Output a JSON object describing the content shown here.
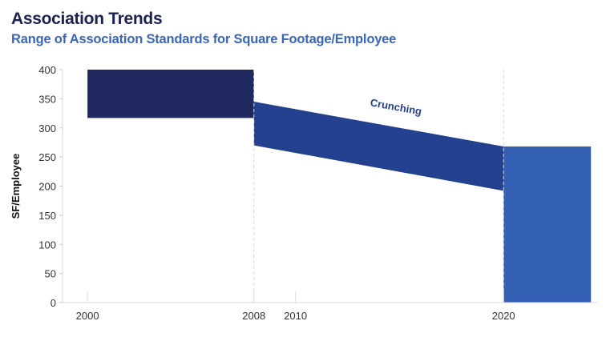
{
  "header": {
    "title": "Association Trends",
    "subtitle": "Range of Association Standards for Square Footage/Employee"
  },
  "chart_data": {
    "type": "area",
    "title": "Association Trends",
    "subtitle": "Range of Association Standards for Square Footage/Employee",
    "xlabel": "",
    "ylabel": "SF/Employee",
    "xlim": [
      1998.8,
      2024.5
    ],
    "ylim": [
      0,
      400
    ],
    "yticks": [
      0,
      50,
      100,
      150,
      200,
      250,
      300,
      350,
      400
    ],
    "xticks": [
      2000,
      2008,
      2010,
      2020
    ],
    "grid": false,
    "legend": "none",
    "bands": [
      {
        "x_start": 2000,
        "x_end": 2008,
        "low_start": 317,
        "low_end": 317,
        "high_start": 400,
        "high_end": 400,
        "color": "#1f2960"
      },
      {
        "x_start": 2008,
        "x_end": 2020,
        "low_start": 270,
        "low_end": 192,
        "high_start": 345,
        "high_end": 268,
        "color": "#23418f"
      },
      {
        "x_start": 2020,
        "x_end": 2024.2,
        "low_start": 0,
        "low_end": 0,
        "high_start": 268,
        "high_end": 268,
        "color": "#3460b3"
      }
    ],
    "vlines": [
      2008,
      2020
    ],
    "annotations": [
      {
        "text": "Crunching",
        "x": 2014.8,
        "y": 330,
        "color": "#23418f"
      }
    ]
  }
}
